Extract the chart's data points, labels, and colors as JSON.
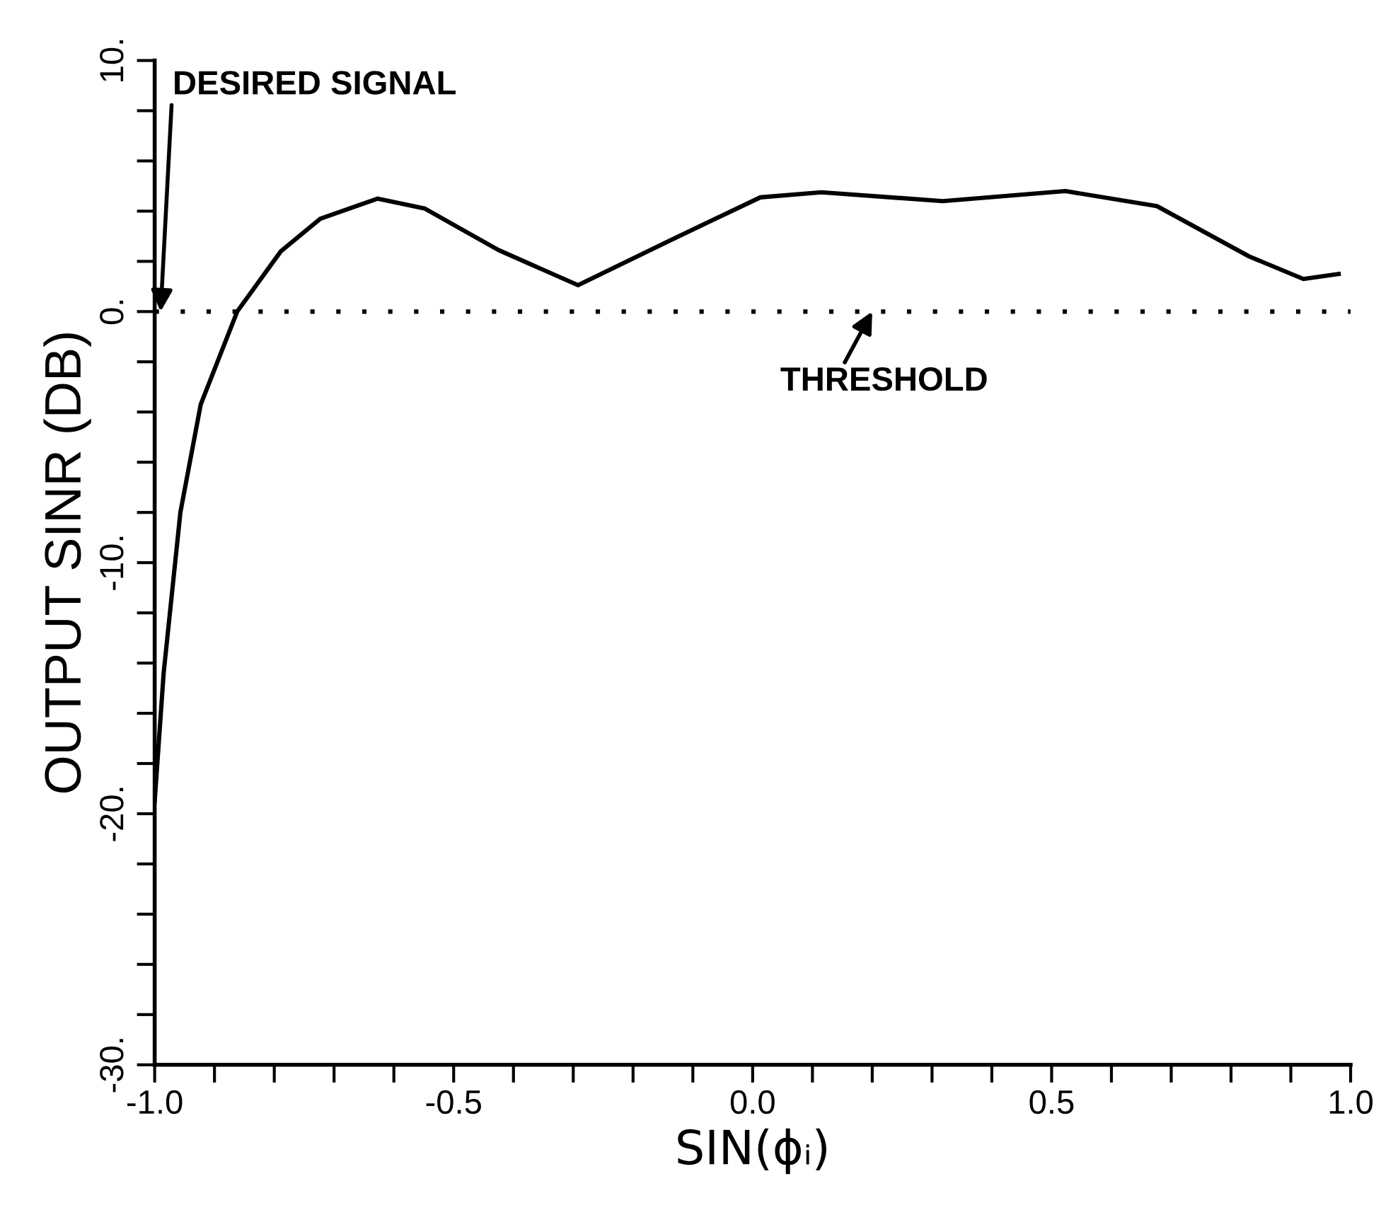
{
  "chart_data": {
    "type": "line",
    "xlabel": "SIN(ϕᵢ)",
    "ylabel": "OUTPUT SINR (DB)",
    "x": [
      -1.0,
      -0.985,
      -0.957,
      -0.923,
      -0.862,
      -0.789,
      -0.723,
      -0.627,
      -0.548,
      -0.425,
      -0.292,
      -0.141,
      0.013,
      0.115,
      0.318,
      0.523,
      0.676,
      0.83,
      0.921,
      0.98
    ],
    "series": [
      {
        "color": "#000000",
        "values": [
          -19.5,
          -14.4,
          -8.0,
          -3.7,
          0.0,
          2.4,
          3.7,
          4.5,
          4.1,
          2.45,
          1.05,
          2.8,
          4.55,
          4.75,
          4.4,
          4.8,
          4.2,
          2.2,
          1.3,
          1.5
        ]
      }
    ],
    "xlim": [
      -1.0,
      1.0
    ],
    "xticks": [
      {
        "value": -1.0,
        "label": "-1.0"
      },
      {
        "value": -0.5,
        "label": "-0.5"
      },
      {
        "value": 0.0,
        "label": "0.0"
      },
      {
        "value": 0.5,
        "label": "0.5"
      },
      {
        "value": 1.0,
        "label": "1.0"
      }
    ],
    "ylim": [
      -30,
      10
    ],
    "yticks": [
      {
        "value": -30,
        "label": "-30."
      },
      {
        "value": -20,
        "label": "-20."
      },
      {
        "value": -10,
        "label": "-10."
      },
      {
        "value": 0,
        "label": "0."
      },
      {
        "value": 10,
        "label": "10."
      }
    ],
    "ref_lines": [
      {
        "axis": "y",
        "value": 0,
        "color": "#000000",
        "line_style": "dotted"
      }
    ],
    "annotations": [
      {
        "text": "DESIRED SIGNAL",
        "x": -0.99,
        "y": 0
      },
      {
        "text": "THRESHOLD",
        "x": 0.2,
        "y": 0
      }
    ],
    "grid": false,
    "legend": false,
    "marker": "none",
    "line_style": "solid"
  }
}
